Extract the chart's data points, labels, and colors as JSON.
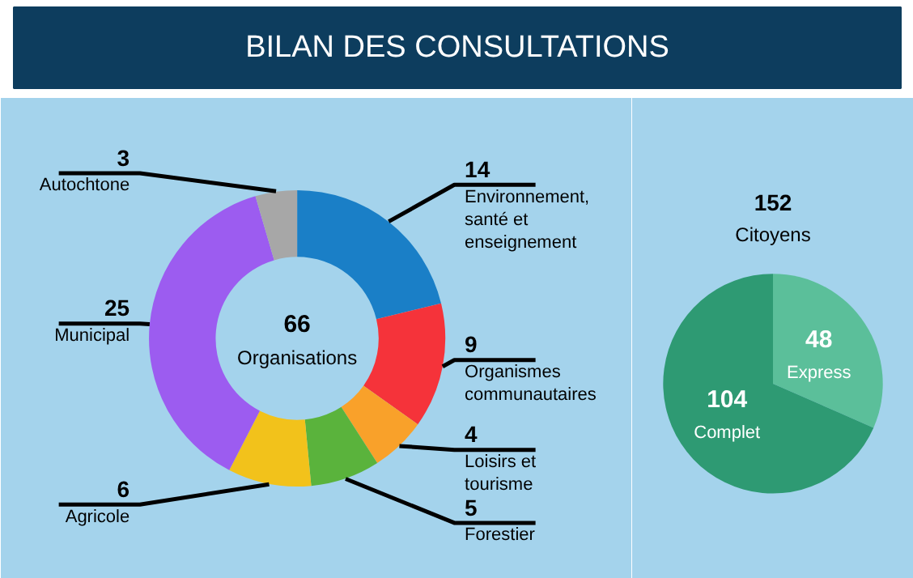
{
  "chart_data": [
    {
      "type": "donut",
      "title": "BILAN DES CONSULTATIONS",
      "categories": [
        "Environnement, santé et enseignement",
        "Organismes communautaires",
        "Loisirs et tourisme",
        "Forestier",
        "Agricole",
        "Municipal",
        "Autochtone"
      ],
      "values": [
        14,
        9,
        4,
        5,
        6,
        25,
        3
      ],
      "colors": [
        "#1a7fc7",
        "#f5333a",
        "#f9a12a",
        "#5ab33c",
        "#f2c21b",
        "#9c5cf0",
        "#a7a7a7"
      ],
      "data_labels": true,
      "annotations": [
        "66",
        "Organisations"
      ]
    },
    {
      "type": "pie",
      "categories": [
        "Express",
        "Complet"
      ],
      "values": [
        48,
        104
      ],
      "colors": [
        "#5bbf9a",
        "#2e9a73"
      ],
      "data_labels": true,
      "annotations": [
        "152",
        "Citoyens"
      ]
    }
  ]
}
